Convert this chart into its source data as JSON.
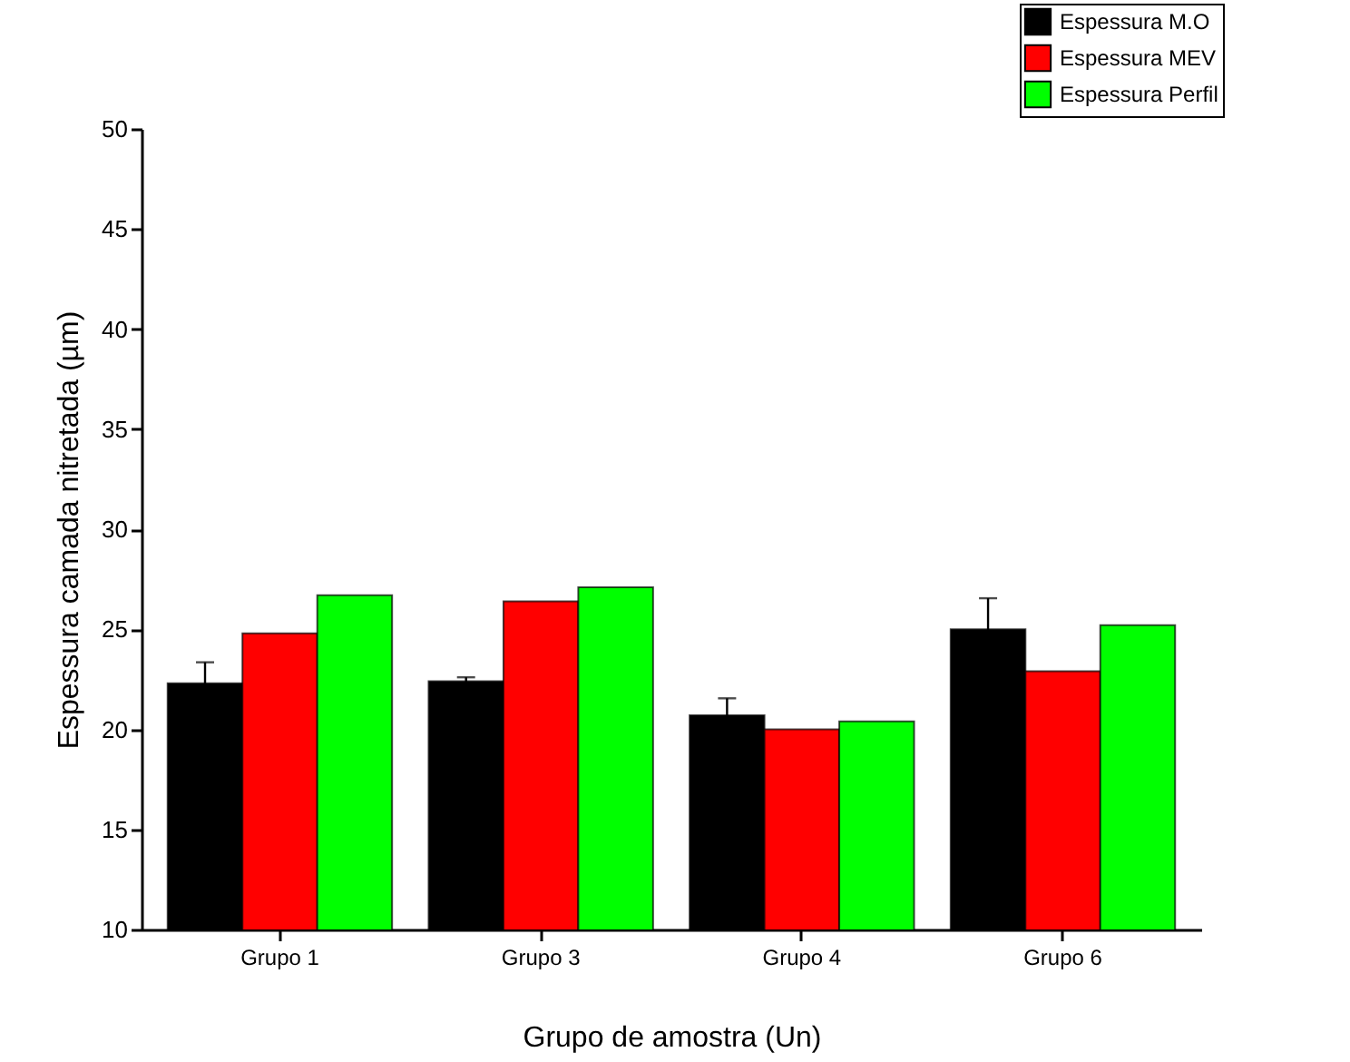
{
  "chart_data": {
    "type": "bar",
    "xlabel": "Grupo de amostra (Un)",
    "ylabel": "Espessura camada nitretada (µm)",
    "categories": [
      "Grupo 1",
      "Grupo 3",
      "Grupo 4",
      "Grupo 6"
    ],
    "series": [
      {
        "name": "Espessura M.O",
        "color": "#000000",
        "values": [
          22.3,
          22.4,
          20.7,
          25.0
        ],
        "errors": [
          1.05,
          0.2,
          0.85,
          1.55
        ]
      },
      {
        "name": "Espessura MEV",
        "color": "#ff0000",
        "values": [
          24.8,
          26.4,
          20.0,
          22.9
        ]
      },
      {
        "name": "Espessura Perfil",
        "color": "#00ff00",
        "values": [
          26.7,
          27.1,
          20.4,
          25.2
        ]
      }
    ],
    "ylim": [
      10,
      50
    ],
    "yticks": [
      10,
      15,
      20,
      25,
      30,
      35,
      40,
      45,
      50
    ],
    "legend": "top right"
  }
}
